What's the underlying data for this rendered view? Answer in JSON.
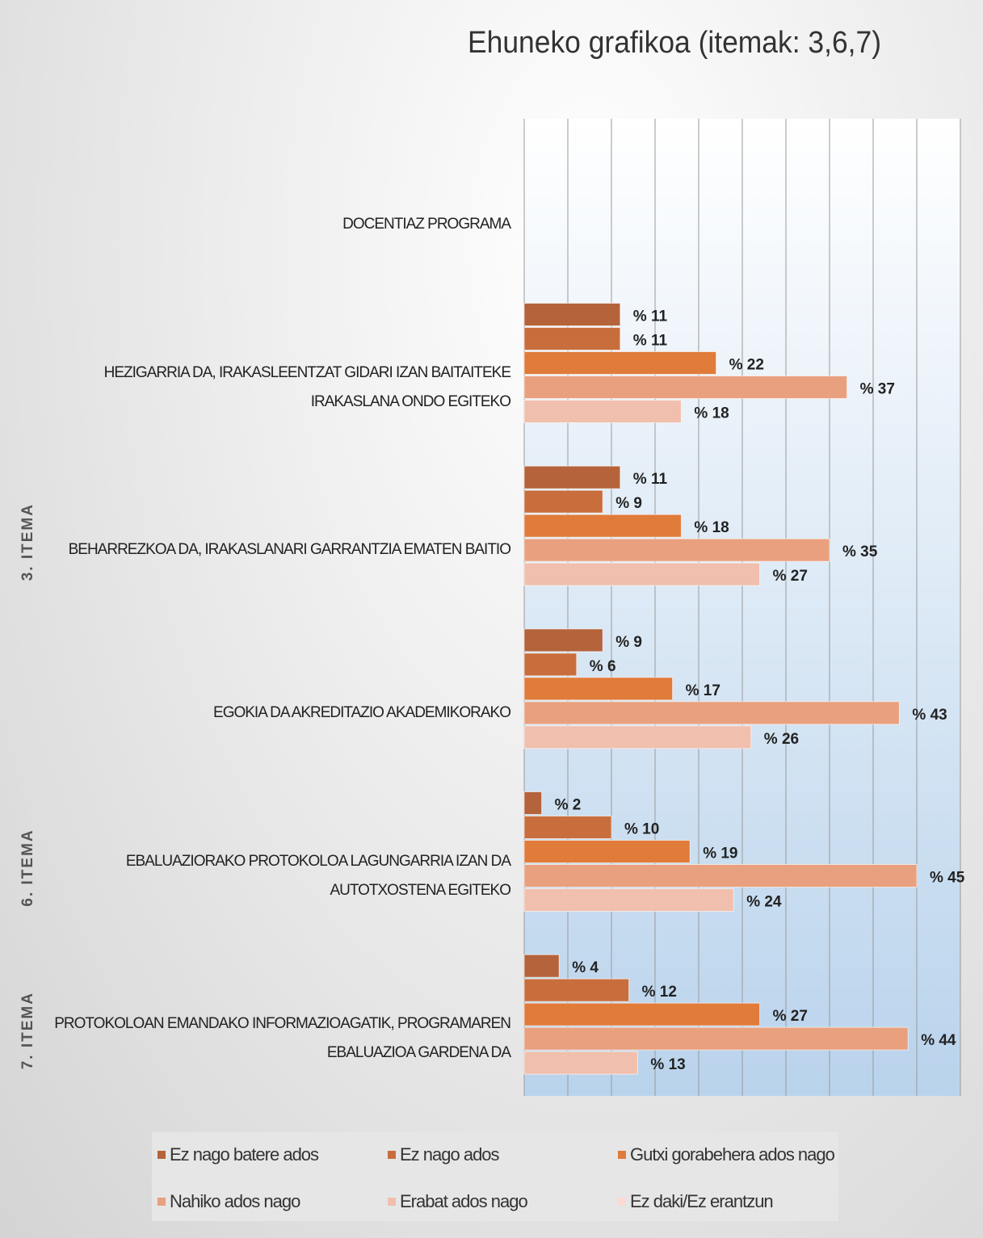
{
  "chart_data": {
    "type": "barh",
    "title": "Ehuneko grafikoa (itemak: 3,6,7)",
    "categories": [
      "DOCENTIAZ PROGRAMA",
      "HEZIGARRIA DA, IRAKASLEENTZAT GIDARI IZAN BAITAITEKE IRAKASLANA ONDO EGITEKO",
      "BEHARREZKOA DA, IRAKASLANARI GARRANTZIA EMATEN BAITIO",
      "EGOKIA DA AKREDITAZIO AKADEMIKORAKO",
      "EBALUAZIORAKO PROTOKOLOA LAGUNGARRIA IZAN DA AUTOTXOSTENA EGITEKO",
      "PROTOKOLOAN EMANDAKO INFORMAZIOAGATIK, PROGRAMAREN EBALUAZIOA GARDENA DA"
    ],
    "group_labels": [
      "3. ITEMA",
      "6. ITEMA",
      "7. ITEMA"
    ],
    "series": [
      {
        "name": "Ez nago batere ados",
        "color": "#b4633a",
        "values": [
          null,
          11,
          11,
          9,
          2,
          4
        ],
        "value_labels": [
          null,
          "% 11",
          "% 11",
          "% 9",
          "% 2",
          "% 4"
        ]
      },
      {
        "name": "Ez nago ados",
        "color": "#c86e3c",
        "values": [
          null,
          11,
          9,
          6,
          10,
          12
        ],
        "value_labels": [
          null,
          "% 11",
          "% 9",
          "% 6",
          "% 10",
          "% 12"
        ]
      },
      {
        "name": "Gutxi gorabehera ados nago",
        "color": "#e07b3a",
        "values": [
          null,
          22,
          18,
          17,
          19,
          27
        ],
        "value_labels": [
          null,
          "% 22",
          "% 18",
          "% 17",
          "% 19",
          "% 27"
        ]
      },
      {
        "name": "Nahiko ados nago",
        "color": "#e9a07e",
        "values": [
          null,
          37,
          35,
          43,
          45,
          44
        ],
        "value_labels": [
          null,
          "% 37",
          "% 35",
          "% 43",
          "% 45",
          "% 44"
        ]
      },
      {
        "name": "Erabat ados nago",
        "color": "#f1bfad",
        "values": [
          null,
          18,
          27,
          26,
          24,
          13
        ],
        "value_labels": [
          null,
          "% 18",
          "% 27",
          "% 26",
          "% 24",
          "% 13"
        ]
      },
      {
        "name": "Ez daki/Ez erantzun",
        "color": "#f8dcd2",
        "values": [
          null,
          null,
          null,
          null,
          null,
          null
        ]
      }
    ],
    "xlim": [
      0,
      50
    ],
    "xticks": [
      0,
      5,
      10,
      15,
      20,
      25,
      30,
      35,
      40,
      45,
      50
    ],
    "grid": true
  }
}
